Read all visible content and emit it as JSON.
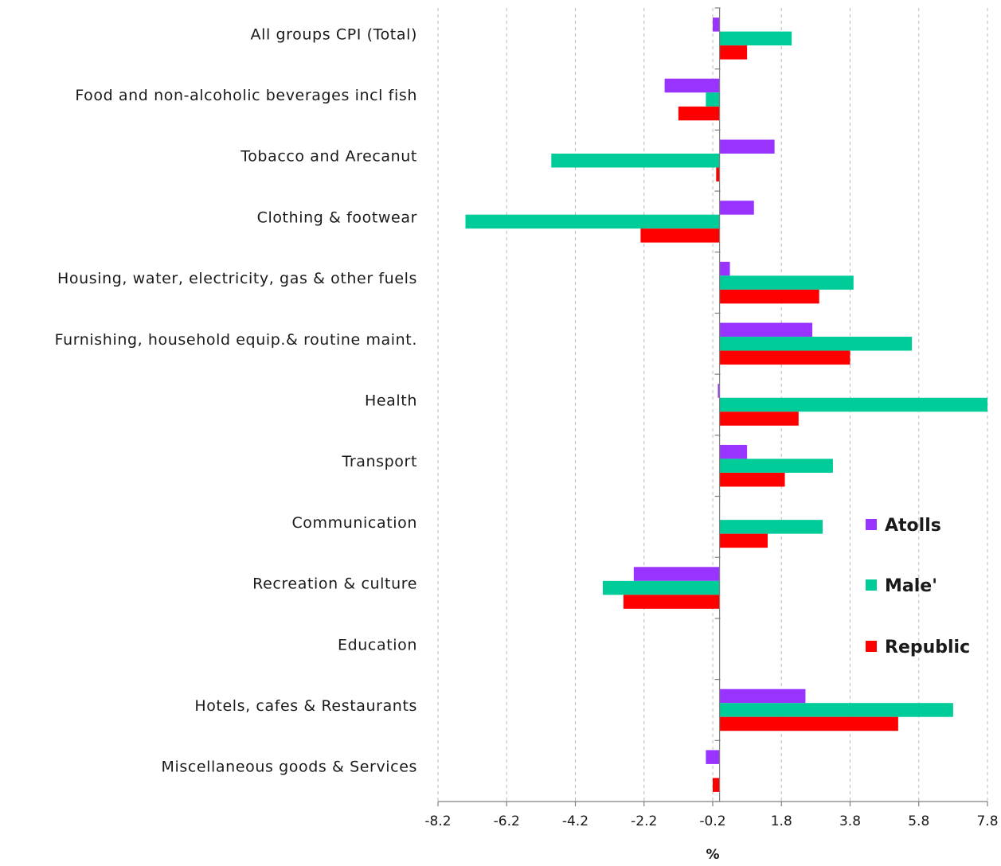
{
  "chart_data": {
    "type": "bar",
    "orientation": "horizontal",
    "categories": [
      "All groups CPI (Total)",
      "Food and non-alcoholic beverages incl fish",
      "Tobacco and Arecanut",
      "Clothing & footwear",
      "Housing, water, electricity, gas & other fuels",
      "Furnishing, household equip.& routine maint.",
      "Health",
      "Transport",
      "Communication",
      "Recreation & culture",
      "Education",
      "Hotels, cafes & Restaurants",
      "Miscellaneous goods & Services"
    ],
    "series": [
      {
        "name": "Atolls",
        "color": "#9933ff",
        "values": [
          -0.2,
          -1.6,
          1.6,
          1.0,
          0.3,
          2.7,
          -0.05,
          0.8,
          0.0,
          -2.5,
          0.0,
          2.5,
          -0.4
        ]
      },
      {
        "name": "Male'",
        "color": "#00cc99",
        "values": [
          2.1,
          -0.4,
          -4.9,
          -7.4,
          3.9,
          5.6,
          7.8,
          3.3,
          3.0,
          -3.4,
          0.0,
          6.8,
          0.0
        ]
      },
      {
        "name": "Republic",
        "color": "#ff0000",
        "values": [
          0.8,
          -1.2,
          -0.1,
          -2.3,
          2.9,
          3.8,
          2.3,
          1.9,
          1.4,
          -2.8,
          0.0,
          5.2,
          -0.2
        ]
      }
    ],
    "xticks": [
      "-8.2",
      "-6.2",
      "-4.2",
      "-2.2",
      "-0.2",
      "1.8",
      "3.8",
      "5.8",
      "7.8"
    ],
    "xlim": [
      -8.2,
      7.8
    ],
    "xlabel": "%",
    "ylabel": "",
    "title": "",
    "grid": "vertical dashed",
    "legend_position": "right"
  }
}
